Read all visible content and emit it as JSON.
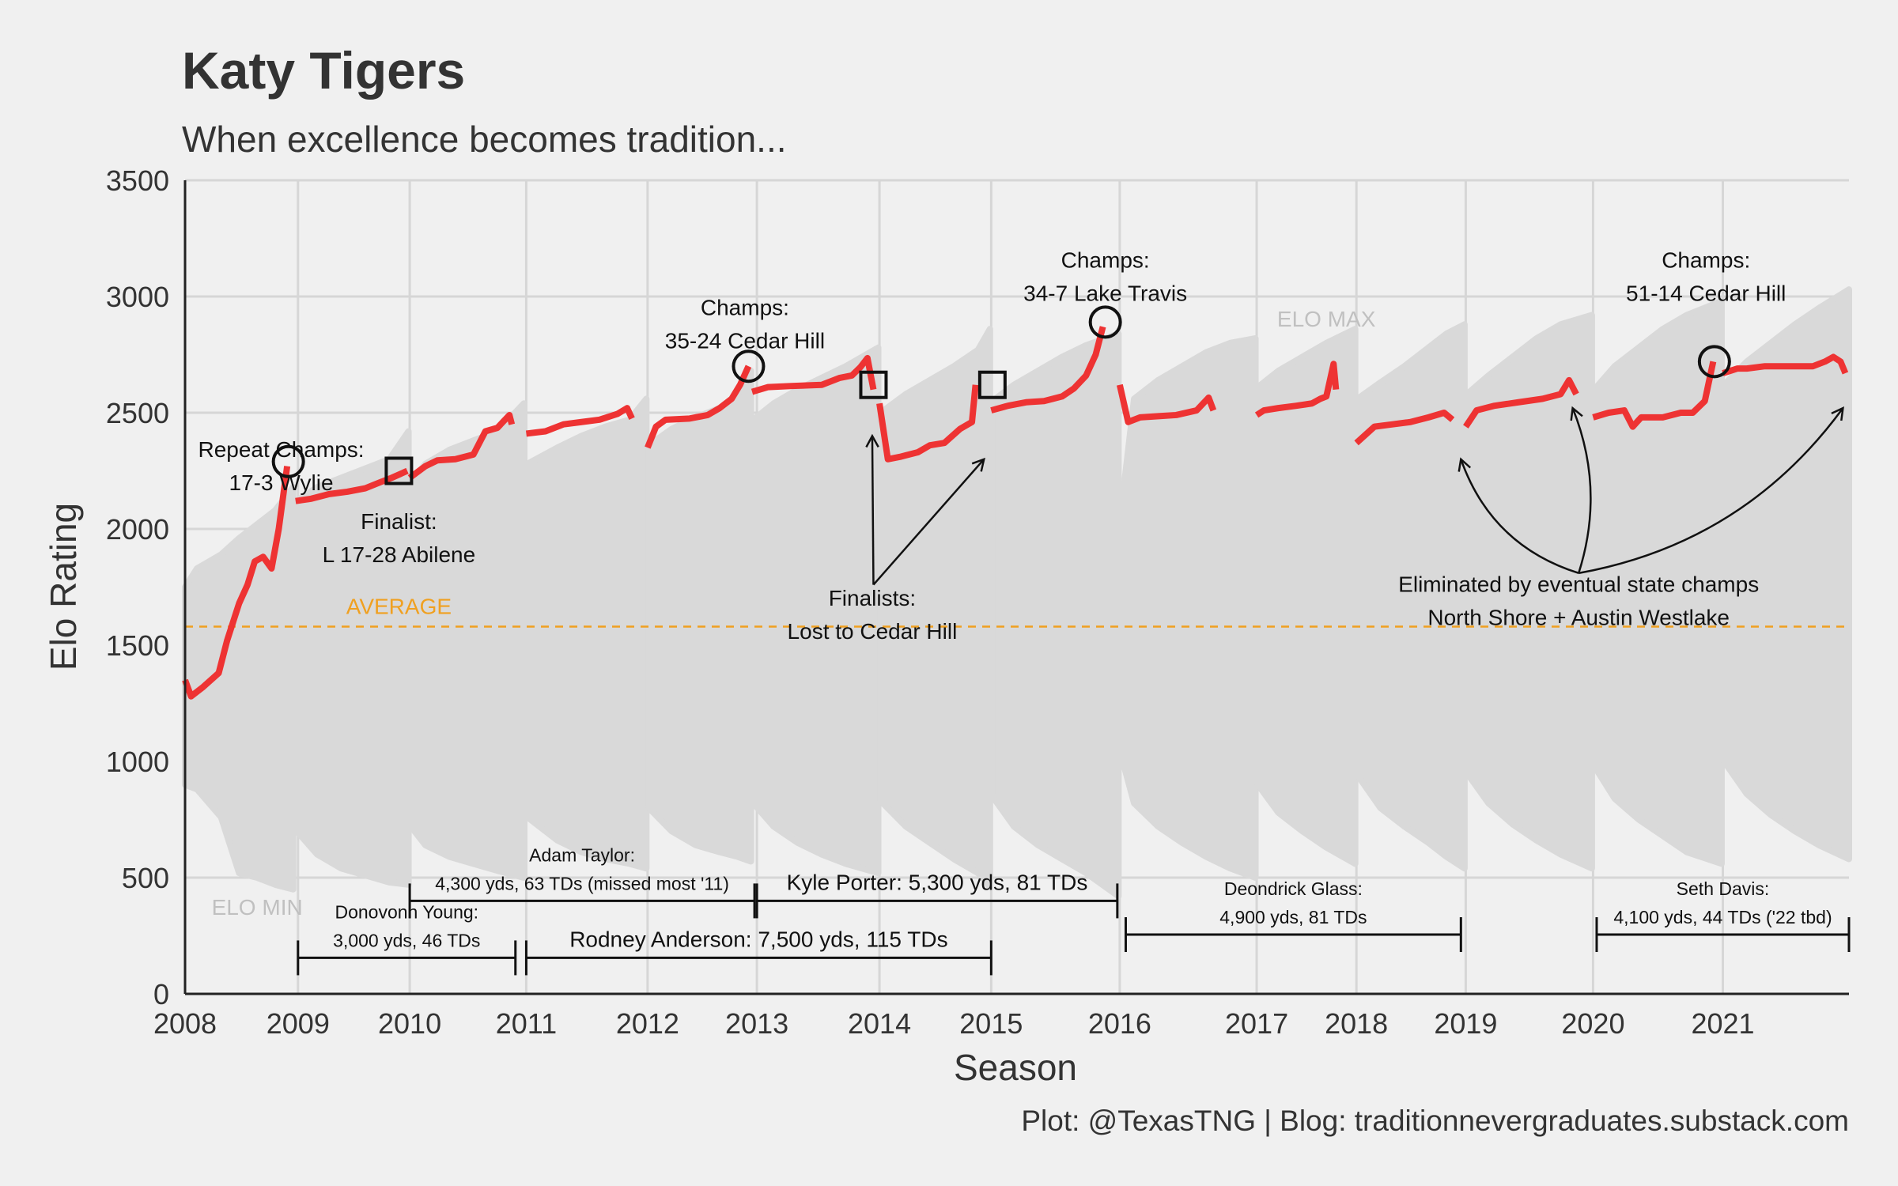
{
  "title": "Katy Tigers",
  "subtitle": "When excellence becomes tradition...",
  "caption": "Plot: @TexasTNG | Blog: traditionnevergraduates.substack.com",
  "colors": {
    "background": "#f0f0f0",
    "grid": "#d6d6d6",
    "band": "#d9d9d9",
    "line": "#ee3333",
    "average": "#f0a020",
    "ref_text": "#c0c0c0"
  },
  "chart_data": {
    "type": "line",
    "xlabel": "Season",
    "ylabel": "Elo Rating",
    "xlim": [
      2008,
      2021.85
    ],
    "ylim": [
      0,
      3500
    ],
    "x_ticks": [
      {
        "label": "2008",
        "x": 2008
      },
      {
        "label": "2009",
        "x": 2008.94
      },
      {
        "label": "2010",
        "x": 2009.87
      },
      {
        "label": "2011",
        "x": 2010.84
      },
      {
        "label": "2012",
        "x": 2011.85
      },
      {
        "label": "2013",
        "x": 2012.76
      },
      {
        "label": "2014",
        "x": 2013.78
      },
      {
        "label": "2015",
        "x": 2014.71
      },
      {
        "label": "2016",
        "x": 2015.78
      },
      {
        "label": "2017",
        "x": 2016.92
      },
      {
        "label": "2018",
        "x": 2017.75
      },
      {
        "label": "2019",
        "x": 2018.66
      },
      {
        "label": "2020",
        "x": 2019.72
      },
      {
        "label": "2021",
        "x": 2020.8
      }
    ],
    "y_ticks": [
      0,
      500,
      1000,
      1500,
      2000,
      2500,
      3000,
      3500
    ],
    "average": {
      "label": "AVERAGE",
      "y": 1580
    },
    "band_labels": [
      {
        "text": "ELO MAX",
        "x": 2017.5,
        "y": 2870
      },
      {
        "text": "ELO MIN",
        "x": 2008.6,
        "y": 340
      }
    ],
    "series": [
      {
        "values": [
          [
            2008.0,
            1350
          ],
          [
            2008.05,
            1280
          ],
          [
            2008.15,
            1320
          ],
          [
            2008.28,
            1380
          ],
          [
            2008.35,
            1520
          ],
          [
            2008.45,
            1680
          ],
          [
            2008.52,
            1760
          ],
          [
            2008.58,
            1860
          ],
          [
            2008.65,
            1880
          ],
          [
            2008.72,
            1830
          ],
          [
            2008.78,
            2000
          ],
          [
            2008.85,
            2270
          ],
          [
            2008.92,
            2120
          ],
          [
            2009.05,
            2130
          ],
          [
            2009.2,
            2150
          ],
          [
            2009.35,
            2160
          ],
          [
            2009.5,
            2175
          ],
          [
            2009.62,
            2200
          ],
          [
            2009.72,
            2220
          ],
          [
            2009.85,
            2250
          ],
          [
            2009.87,
            2220
          ],
          [
            2010.0,
            2270
          ],
          [
            2010.1,
            2295
          ],
          [
            2010.25,
            2300
          ],
          [
            2010.4,
            2320
          ],
          [
            2010.5,
            2420
          ],
          [
            2010.6,
            2435
          ],
          [
            2010.7,
            2490
          ],
          [
            2010.72,
            2450
          ],
          [
            2010.84,
            2410
          ],
          [
            2011.0,
            2420
          ],
          [
            2011.15,
            2450
          ],
          [
            2011.3,
            2460
          ],
          [
            2011.45,
            2470
          ],
          [
            2011.6,
            2495
          ],
          [
            2011.68,
            2520
          ],
          [
            2011.72,
            2475
          ],
          [
            2011.85,
            2350
          ],
          [
            2011.92,
            2440
          ],
          [
            2012.0,
            2470
          ],
          [
            2012.2,
            2475
          ],
          [
            2012.35,
            2490
          ],
          [
            2012.45,
            2520
          ],
          [
            2012.55,
            2560
          ],
          [
            2012.62,
            2620
          ],
          [
            2012.69,
            2700
          ],
          [
            2012.72,
            2590
          ],
          [
            2012.85,
            2610
          ],
          [
            2013.05,
            2615
          ],
          [
            2013.3,
            2620
          ],
          [
            2013.45,
            2650
          ],
          [
            2013.55,
            2660
          ],
          [
            2013.62,
            2695
          ],
          [
            2013.68,
            2735
          ],
          [
            2013.73,
            2600
          ],
          [
            2013.78,
            2540
          ],
          [
            2013.85,
            2300
          ],
          [
            2013.95,
            2310
          ],
          [
            2014.1,
            2330
          ],
          [
            2014.2,
            2360
          ],
          [
            2014.32,
            2370
          ],
          [
            2014.45,
            2430
          ],
          [
            2014.55,
            2460
          ],
          [
            2014.58,
            2620
          ],
          [
            2014.71,
            2510
          ],
          [
            2014.85,
            2530
          ],
          [
            2015.0,
            2545
          ],
          [
            2015.15,
            2550
          ],
          [
            2015.3,
            2570
          ],
          [
            2015.4,
            2605
          ],
          [
            2015.5,
            2660
          ],
          [
            2015.58,
            2750
          ],
          [
            2015.64,
            2870
          ],
          [
            2015.78,
            2620
          ],
          [
            2015.85,
            2460
          ],
          [
            2015.95,
            2480
          ],
          [
            2016.1,
            2485
          ],
          [
            2016.25,
            2490
          ],
          [
            2016.42,
            2510
          ],
          [
            2016.52,
            2565
          ],
          [
            2016.56,
            2510
          ],
          [
            2016.92,
            2490
          ],
          [
            2016.98,
            2510
          ],
          [
            2017.1,
            2520
          ],
          [
            2017.25,
            2530
          ],
          [
            2017.38,
            2540
          ],
          [
            2017.45,
            2560
          ],
          [
            2017.5,
            2570
          ],
          [
            2017.56,
            2710
          ],
          [
            2017.58,
            2600
          ],
          [
            2017.75,
            2370
          ],
          [
            2017.9,
            2440
          ],
          [
            2018.05,
            2450
          ],
          [
            2018.2,
            2460
          ],
          [
            2018.35,
            2480
          ],
          [
            2018.48,
            2500
          ],
          [
            2018.55,
            2470
          ],
          [
            2018.66,
            2440
          ],
          [
            2018.75,
            2510
          ],
          [
            2018.9,
            2530
          ],
          [
            2019.1,
            2545
          ],
          [
            2019.3,
            2560
          ],
          [
            2019.45,
            2580
          ],
          [
            2019.52,
            2640
          ],
          [
            2019.58,
            2580
          ],
          [
            2019.72,
            2480
          ],
          [
            2019.85,
            2500
          ],
          [
            2019.98,
            2510
          ],
          [
            2020.05,
            2440
          ],
          [
            2020.12,
            2480
          ],
          [
            2020.3,
            2480
          ],
          [
            2020.45,
            2500
          ],
          [
            2020.55,
            2500
          ],
          [
            2020.65,
            2550
          ],
          [
            2020.72,
            2720
          ],
          [
            2020.8,
            2670
          ],
          [
            2020.92,
            2690
          ],
          [
            2021.0,
            2690
          ],
          [
            2021.15,
            2700
          ],
          [
            2021.35,
            2700
          ],
          [
            2021.55,
            2700
          ],
          [
            2021.65,
            2720
          ],
          [
            2021.72,
            2740
          ],
          [
            2021.78,
            2720
          ],
          [
            2021.82,
            2670
          ]
        ]
      }
    ],
    "season_breaks": [
      2008.92,
      2009.87,
      2010.84,
      2011.85,
      2012.72,
      2013.78,
      2014.71,
      2015.78,
      2016.92,
      2017.75,
      2018.66,
      2019.72,
      2020.8
    ],
    "elo_band": [
      [
        2008.0,
        900,
        1750
      ],
      [
        2008.1,
        880,
        1830
      ],
      [
        2008.3,
        760,
        1890
      ],
      [
        2008.45,
        520,
        1960
      ],
      [
        2008.6,
        500,
        2020
      ],
      [
        2008.75,
        470,
        2080
      ],
      [
        2008.9,
        450,
        2180
      ],
      [
        2008.93,
        700,
        2120
      ],
      [
        2009.1,
        600,
        2180
      ],
      [
        2009.3,
        540,
        2220
      ],
      [
        2009.5,
        510,
        2260
      ],
      [
        2009.7,
        480,
        2300
      ],
      [
        2009.86,
        470,
        2420
      ],
      [
        2009.88,
        720,
        2200
      ],
      [
        2010.0,
        640,
        2280
      ],
      [
        2010.2,
        590,
        2340
      ],
      [
        2010.4,
        560,
        2380
      ],
      [
        2010.6,
        530,
        2420
      ],
      [
        2010.82,
        500,
        2540
      ],
      [
        2010.85,
        760,
        2280
      ],
      [
        2011.1,
        660,
        2350
      ],
      [
        2011.3,
        610,
        2400
      ],
      [
        2011.5,
        580,
        2440
      ],
      [
        2011.7,
        560,
        2470
      ],
      [
        2011.84,
        540,
        2560
      ],
      [
        2011.86,
        800,
        2360
      ],
      [
        2012.05,
        700,
        2430
      ],
      [
        2012.25,
        640,
        2480
      ],
      [
        2012.45,
        610,
        2520
      ],
      [
        2012.6,
        590,
        2580
      ],
      [
        2012.71,
        570,
        2680
      ],
      [
        2012.73,
        820,
        2470
      ],
      [
        2012.9,
        720,
        2540
      ],
      [
        2013.1,
        650,
        2600
      ],
      [
        2013.3,
        600,
        2650
      ],
      [
        2013.5,
        560,
        2700
      ],
      [
        2013.77,
        520,
        2780
      ],
      [
        2013.79,
        830,
        2500
      ],
      [
        2014.0,
        720,
        2580
      ],
      [
        2014.2,
        650,
        2640
      ],
      [
        2014.4,
        580,
        2700
      ],
      [
        2014.6,
        520,
        2770
      ],
      [
        2014.7,
        460,
        2860
      ],
      [
        2014.72,
        850,
        2550
      ],
      [
        2014.9,
        720,
        2620
      ],
      [
        2015.1,
        640,
        2680
      ],
      [
        2015.3,
        580,
        2740
      ],
      [
        2015.5,
        520,
        2790
      ],
      [
        2015.77,
        420,
        2840
      ],
      [
        2015.79,
        1030,
        2070
      ],
      [
        2015.9,
        820,
        2560
      ],
      [
        2016.1,
        720,
        2640
      ],
      [
        2016.3,
        650,
        2700
      ],
      [
        2016.5,
        590,
        2760
      ],
      [
        2016.7,
        540,
        2800
      ],
      [
        2016.91,
        500,
        2820
      ],
      [
        2016.93,
        900,
        2610
      ],
      [
        2017.1,
        780,
        2680
      ],
      [
        2017.3,
        700,
        2740
      ],
      [
        2017.5,
        630,
        2800
      ],
      [
        2017.74,
        560,
        2860
      ],
      [
        2017.76,
        940,
        2560
      ],
      [
        2017.95,
        800,
        2630
      ],
      [
        2018.15,
        720,
        2700
      ],
      [
        2018.35,
        650,
        2780
      ],
      [
        2018.5,
        590,
        2840
      ],
      [
        2018.65,
        540,
        2880
      ],
      [
        2018.67,
        950,
        2580
      ],
      [
        2018.85,
        820,
        2660
      ],
      [
        2019.05,
        730,
        2740
      ],
      [
        2019.25,
        660,
        2820
      ],
      [
        2019.45,
        600,
        2880
      ],
      [
        2019.71,
        540,
        2920
      ],
      [
        2019.73,
        980,
        2600
      ],
      [
        2019.9,
        840,
        2700
      ],
      [
        2020.1,
        750,
        2780
      ],
      [
        2020.3,
        680,
        2860
      ],
      [
        2020.5,
        610,
        2920
      ],
      [
        2020.79,
        560,
        2980
      ],
      [
        2020.81,
        1000,
        2620
      ],
      [
        2021.0,
        860,
        2720
      ],
      [
        2021.2,
        770,
        2800
      ],
      [
        2021.4,
        700,
        2880
      ],
      [
        2021.6,
        640,
        2950
      ],
      [
        2021.85,
        580,
        3030
      ]
    ],
    "circles": [
      {
        "x": 2008.86,
        "y": 2290
      },
      {
        "x": 2012.69,
        "y": 2700
      },
      {
        "x": 2015.66,
        "y": 2890
      },
      {
        "x": 2020.73,
        "y": 2720
      }
    ],
    "squares": [
      {
        "x": 2009.78,
        "y": 2250
      },
      {
        "x": 2013.73,
        "y": 2620
      },
      {
        "x": 2014.72,
        "y": 2620
      }
    ],
    "annotations": [
      {
        "lines": [
          "Repeat Champs:",
          "17-3 Wylie"
        ],
        "x": 2008.8,
        "y": 2310
      },
      {
        "lines": [
          "Finalist:",
          "L 17-28 Abilene"
        ],
        "x": 2009.78,
        "y": 2000
      },
      {
        "lines": [
          "Champs:",
          "35-24 Cedar Hill"
        ],
        "x": 2012.66,
        "y": 2920
      },
      {
        "lines": [
          "Champs:",
          "34-7 Lake Travis"
        ],
        "x": 2015.66,
        "y": 3125
      },
      {
        "lines": [
          "Champs:",
          "51-14 Cedar Hill"
        ],
        "x": 2020.66,
        "y": 3125
      },
      {
        "lines": [
          "Finalists:",
          "Lost to Cedar Hill"
        ],
        "x": 2013.72,
        "y": 1670
      },
      {
        "lines": [
          "Eliminated by eventual state champs",
          "North Shore + Austin Westlake"
        ],
        "x": 2019.6,
        "y": 1730
      }
    ],
    "arrows": [
      {
        "from": [
          2013.73,
          1760
        ],
        "to": [
          2013.72,
          2400
        ],
        "curve": 0
      },
      {
        "from": [
          2013.73,
          1760
        ],
        "to": [
          2014.65,
          2300
        ],
        "curve": 0
      },
      {
        "from": [
          2019.6,
          1810
        ],
        "to": [
          2018.62,
          2300
        ],
        "curve": -0.25
      },
      {
        "from": [
          2019.6,
          1810
        ],
        "to": [
          2019.55,
          2520
        ],
        "curve": 0.18
      },
      {
        "from": [
          2019.6,
          1810
        ],
        "to": [
          2021.8,
          2520
        ],
        "curve": 0.2
      }
    ],
    "qb_brackets": [
      {
        "lines": [
          "Donovonn Young:",
          "3,000 yds, 46 TDs"
        ],
        "x1": 2008.94,
        "x2": 2010.75,
        "y": 155,
        "size": "sm"
      },
      {
        "lines": [
          "Adam Taylor:",
          "4,300 yds, 63 TDs (missed most '11)"
        ],
        "x1": 2009.87,
        "x2": 2012.74,
        "y": 400,
        "size": "sm"
      },
      {
        "lines": [
          "Kyle Porter: 5,300 yds, 81 TDs"
        ],
        "x1": 2012.76,
        "x2": 2015.76,
        "y": 400,
        "size": "md"
      },
      {
        "lines": [
          "Rodney Anderson: 7,500 yds, 115 TDs"
        ],
        "x1": 2010.84,
        "x2": 2014.71,
        "y": 155,
        "size": "md"
      },
      {
        "lines": [
          "Deondrick Glass:",
          "4,900 yds, 81 TDs"
        ],
        "x1": 2015.83,
        "x2": 2018.62,
        "y": 255,
        "size": "sm"
      },
      {
        "lines": [
          "Seth Davis:",
          "4,100 yds, 44 TDs ('22 tbd)"
        ],
        "x1": 2019.75,
        "x2": 2021.85,
        "y": 255,
        "size": "sm"
      }
    ]
  }
}
